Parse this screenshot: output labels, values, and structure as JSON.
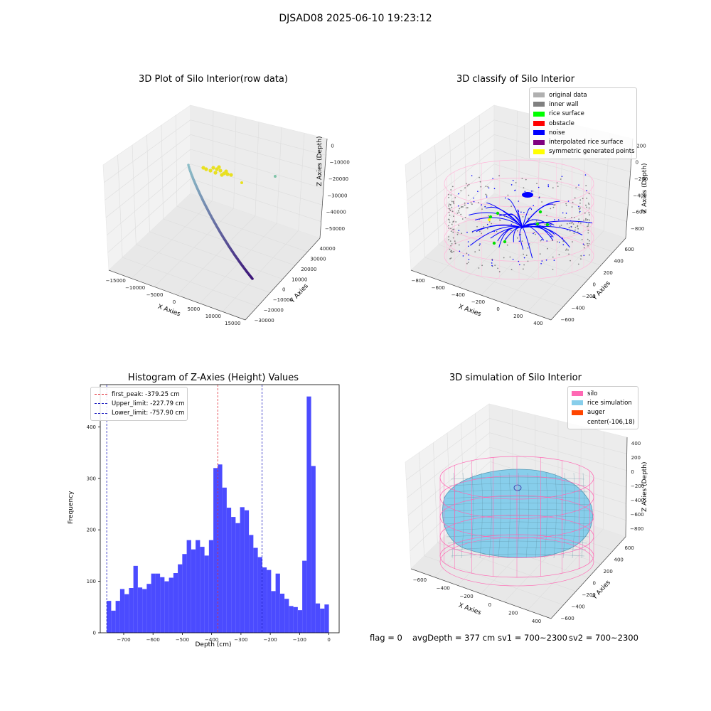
{
  "suptitle": "DJSAD08 2025-06-10 19:23:12",
  "footer": {
    "flag": "flag = 0",
    "avg_depth": "avgDepth = 377 cm",
    "sv1": "sv1 = 700~2300",
    "sv2": "sv2 = 700~2300"
  },
  "colors": {
    "grid": "#dddddd",
    "pane": "#f2f2f2",
    "hist_bar": "#4b4bff",
    "peak_line": "#e0303a",
    "limit_line": "#2020c0",
    "silo_wire": "#ff69b4",
    "rice": "#87ceeb",
    "auger": "#ff4500",
    "noise": "#0000ff",
    "inner_wall": "#808080"
  },
  "chart_data": [
    {
      "type": "scatter",
      "title": "3D Plot of Silo Interior(row data)",
      "xlabel": "X Axies",
      "ylabel": "Y Axies",
      "zlabel": "Z Axies (Depth)",
      "x_ticks": [
        "−15000",
        "−10000",
        "−5000",
        "0",
        "5000",
        "10000",
        "15000"
      ],
      "y_ticks": [
        "−30000",
        "−20000",
        "−10000",
        "0",
        "10000",
        "20000",
        "30000",
        "40000"
      ],
      "z_ticks": [
        "0",
        "−10000",
        "−20000",
        "−30000",
        "−40000",
        "−50000"
      ],
      "grid": true
    },
    {
      "type": "scatter",
      "title": "3D classify of Silo Interior",
      "xlabel": "X Axies",
      "ylabel": "Y Axies",
      "zlabel": "Z Axies (Depth)",
      "x_ticks": [
        "−800",
        "−600",
        "−400",
        "−200",
        "0",
        "200",
        "400"
      ],
      "y_ticks": [
        "−600",
        "−400",
        "−200",
        "0",
        "200",
        "400",
        "600"
      ],
      "z_ticks": [
        "200",
        "0",
        "−200",
        "−400",
        "−600",
        "−800"
      ],
      "legend_position": "top-right",
      "legend": [
        {
          "label": "original data",
          "color": "#b0b0b0"
        },
        {
          "label": "inner wall",
          "color": "#808080"
        },
        {
          "label": "rice surface",
          "color": "#00ff00"
        },
        {
          "label": "obstacle",
          "color": "#ff0000"
        },
        {
          "label": "noise",
          "color": "#0000ff"
        },
        {
          "label": "interpolated rice surface",
          "color": "#800080"
        },
        {
          "label": "symmetric generated points",
          "color": "#ffff00"
        }
      ],
      "grid": true
    },
    {
      "type": "bar",
      "title": "Histogram of Z-Axies (Height) Values",
      "xlabel": "Depth (cm)",
      "ylabel": "Frequency",
      "xlim": [
        -780,
        35
      ],
      "ylim": [
        0,
        482
      ],
      "x_ticks": [
        -700,
        -600,
        -500,
        -400,
        -300,
        -200,
        -100,
        0
      ],
      "x_tick_labels": [
        "−700",
        "−600",
        "−500",
        "−400",
        "−300",
        "−200",
        "−100",
        "0"
      ],
      "y_ticks": [
        0,
        100,
        200,
        300,
        400
      ],
      "bin_start": -757.9,
      "bin_width": 15.16,
      "values": [
        62,
        43,
        62,
        85,
        75,
        87,
        130,
        88,
        85,
        95,
        115,
        115,
        108,
        100,
        107,
        116,
        133,
        153,
        180,
        162,
        180,
        167,
        150,
        180,
        320,
        327,
        282,
        243,
        225,
        213,
        244,
        238,
        190,
        165,
        147,
        127,
        122,
        81,
        115,
        76,
        66,
        52,
        50,
        44,
        140,
        459,
        324,
        57,
        47,
        55
      ],
      "lines": [
        {
          "label": "first_peak: -379.25 cm",
          "x": -379.25,
          "color": "#e0303a"
        },
        {
          "label": "Upper_limit: -227.79 cm",
          "x": -227.79,
          "color": "#2020c0"
        },
        {
          "label": "Lower_limit: -757.90 cm",
          "x": -757.9,
          "color": "#2020c0"
        }
      ],
      "legend_position": "top-left",
      "grid": false
    },
    {
      "type": "area",
      "title": "3D simulation of Silo Interior",
      "xlabel": "X Axies",
      "ylabel": "Y Axies",
      "zlabel": "Z Axies (Depth)",
      "x_ticks": [
        "−600",
        "−400",
        "−200",
        "0",
        "200",
        "400"
      ],
      "y_ticks": [
        "−600",
        "−400",
        "−200",
        "0",
        "200",
        "400",
        "600"
      ],
      "z_ticks": [
        "400",
        "200",
        "0",
        "−200",
        "−400",
        "−600",
        "−800"
      ],
      "legend_position": "top-right",
      "legend": [
        {
          "label": "silo",
          "color": "#ff69b4"
        },
        {
          "label": "rice simulation",
          "color": "#87ceeb"
        },
        {
          "label": "auger",
          "color": "#ff4500"
        },
        {
          "label": "center(-106,18)",
          "color": ""
        }
      ],
      "grid": true
    }
  ]
}
